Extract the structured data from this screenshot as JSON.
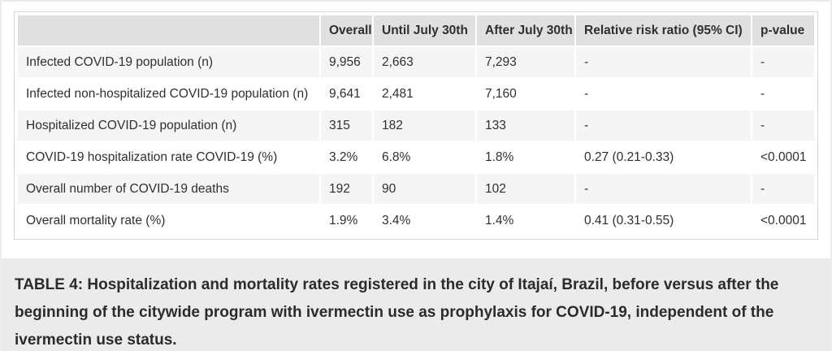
{
  "table": {
    "columns": [
      "",
      "Overall",
      "Until July 30th",
      "After July 30th",
      "Relative risk ratio (95% CI)",
      "p-value"
    ],
    "rows": [
      {
        "label": "Infected COVID-19 population (n)",
        "values": [
          "9,956",
          "2,663",
          "7,293",
          "-",
          "-"
        ]
      },
      {
        "label": "Infected non-hospitalized COVID-19 population (n)",
        "values": [
          "9,641",
          "2,481",
          "7,160",
          "-",
          "-"
        ]
      },
      {
        "label": "Hospitalized COVID-19 population (n)",
        "values": [
          "315",
          "182",
          "133",
          "-",
          "-"
        ]
      },
      {
        "label": "COVID-19 hospitalization rate COVID-19 (%)",
        "values": [
          "3.2%",
          "6.8%",
          "1.8%",
          "0.27 (0.21-0.33)",
          "<0.0001"
        ]
      },
      {
        "label": "Overall number of COVID-19 deaths",
        "values": [
          "192",
          "90",
          "102",
          "-",
          "-"
        ]
      },
      {
        "label": "Overall mortality rate (%)",
        "values": [
          "1.9%",
          "3.4%",
          "1.4%",
          "0.41 (0.31-0.55)",
          "<0.0001"
        ]
      }
    ]
  },
  "caption": "TABLE 4: Hospitalization and mortality rates registered in the city of Itajaí, Brazil, before versus after the beginning of the citywide program with ivermectin use as prophylaxis for COVID-19, independent of the ivermectin use status.",
  "colors": {
    "header_cell": "#e0e0e0",
    "odd_row": "#f5f5f5",
    "even_row": "#ffffff",
    "card_border": "#d5d5d5",
    "caption_bg": "#ebebeb",
    "text": "#2f2f2f"
  }
}
